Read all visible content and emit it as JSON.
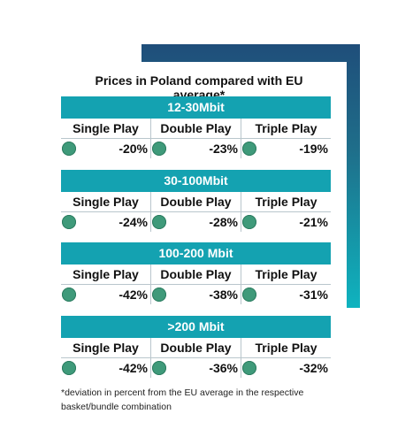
{
  "title": "Prices in Poland compared with EU average*",
  "groups": [
    {
      "header": "12-30Mbit",
      "labels": [
        "Single Play",
        "Double Play",
        "Triple Play"
      ],
      "values": [
        "-20%",
        "-23%",
        "-19%"
      ]
    },
    {
      "header": "30-100Mbit",
      "labels": [
        "Single Play",
        "Double Play",
        "Triple Play"
      ],
      "values": [
        "-24%",
        "-28%",
        "-21%"
      ]
    },
    {
      "header": "100-200 Mbit",
      "labels": [
        "Single Play",
        "Double Play",
        "Triple Play"
      ],
      "values": [
        "-42%",
        "-38%",
        "-31%"
      ]
    },
    {
      "header": ">200 Mbit",
      "labels": [
        "Single Play",
        "Double Play",
        "Triple Play"
      ],
      "values": [
        "-42%",
        "-36%",
        "-32%"
      ]
    }
  ],
  "footnote": "*deviation in percent from the EU average in the respective basket/bundle combination",
  "colors": {
    "header": "#14a2b1",
    "indicator": "#3f9a7a",
    "frame_top": "#1f4e7a",
    "frame_bottom": "#0fb3bf"
  },
  "icons": {
    "indicator": "green-circle-icon"
  }
}
